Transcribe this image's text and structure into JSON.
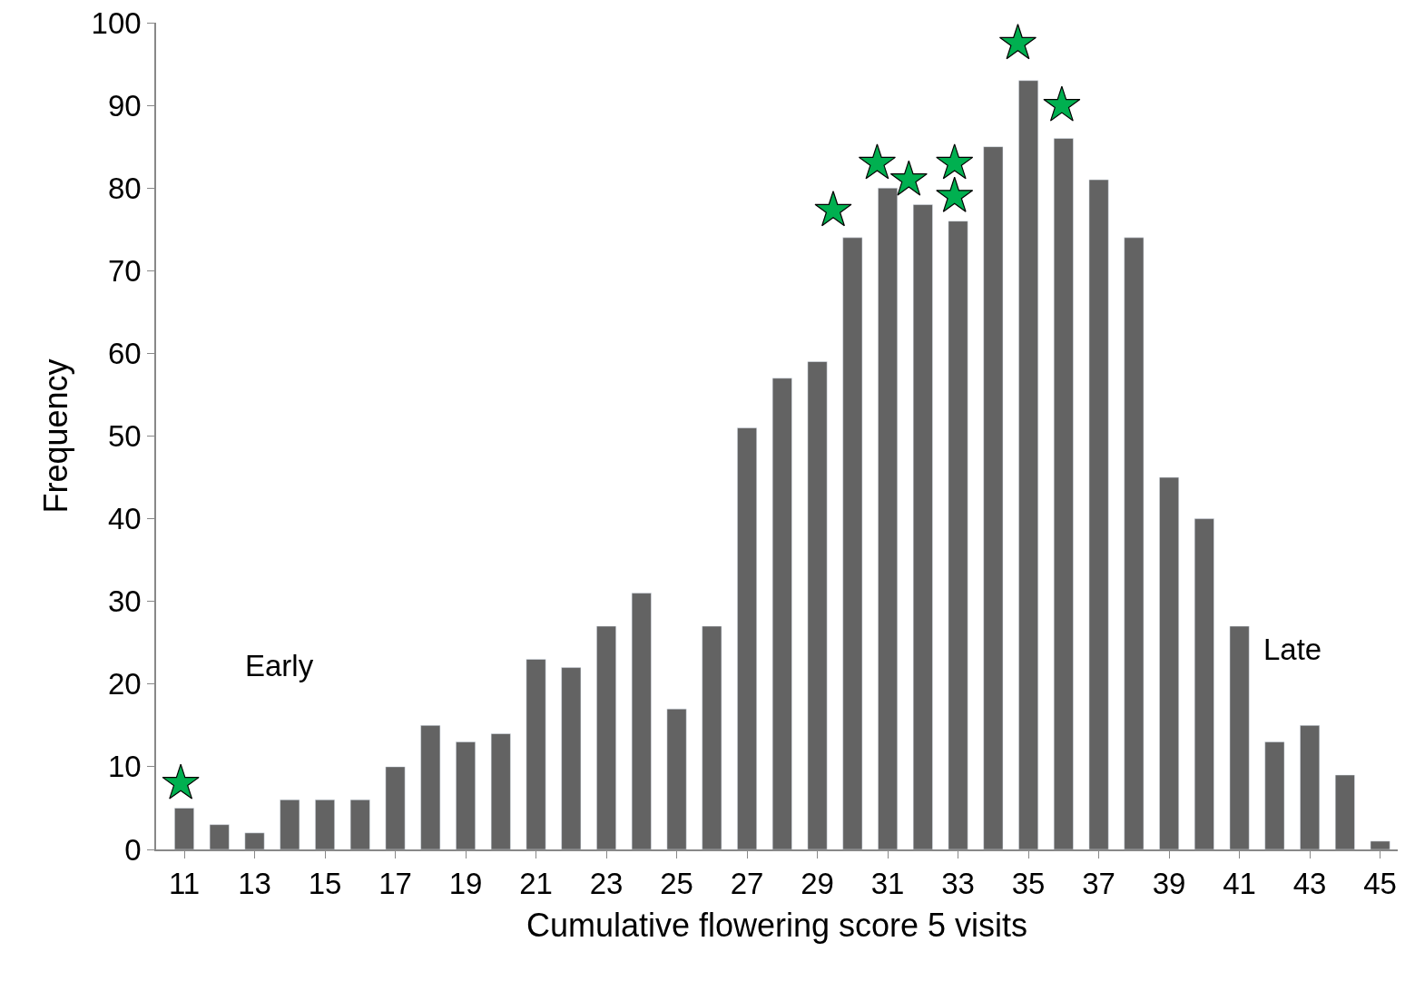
{
  "chart_data": {
    "type": "bar",
    "xlabel": "Cumulative flowering score 5 visits",
    "ylabel": "Frequency",
    "x": [
      11,
      12,
      13,
      14,
      15,
      16,
      17,
      18,
      19,
      20,
      21,
      22,
      23,
      24,
      25,
      26,
      27,
      28,
      29,
      30,
      31,
      32,
      33,
      34,
      35,
      36,
      37,
      38,
      39,
      40,
      41,
      42,
      43,
      44,
      45
    ],
    "series": [
      {
        "color": "#636363",
        "values": [
          5,
          3,
          2,
          6,
          6,
          6,
          10,
          15,
          13,
          14,
          23,
          22,
          27,
          31,
          17,
          27,
          51,
          57,
          59,
          74,
          80,
          78,
          76,
          85,
          93,
          86,
          81,
          74,
          45,
          40,
          27,
          13,
          15,
          9,
          1
        ]
      },
      {
        "type": "scatter",
        "marker": "star",
        "color": "#00b050",
        "x": [
          10.9,
          29.45,
          30.7,
          31.6,
          32.9,
          32.9,
          34.7,
          35.95
        ],
        "values": [
          8,
          77.3,
          83,
          81,
          83,
          79,
          97.5,
          90
        ]
      }
    ],
    "xlim": [
      10.2,
      45.5
    ],
    "xticks": [
      11,
      13,
      15,
      17,
      19,
      21,
      23,
      25,
      27,
      29,
      31,
      33,
      35,
      37,
      39,
      41,
      43,
      45
    ],
    "ylim": [
      0,
      100
    ],
    "yticks": [
      0,
      10,
      20,
      30,
      40,
      50,
      60,
      70,
      80,
      90,
      100
    ],
    "annotations": [
      "Early",
      "Late"
    ]
  }
}
